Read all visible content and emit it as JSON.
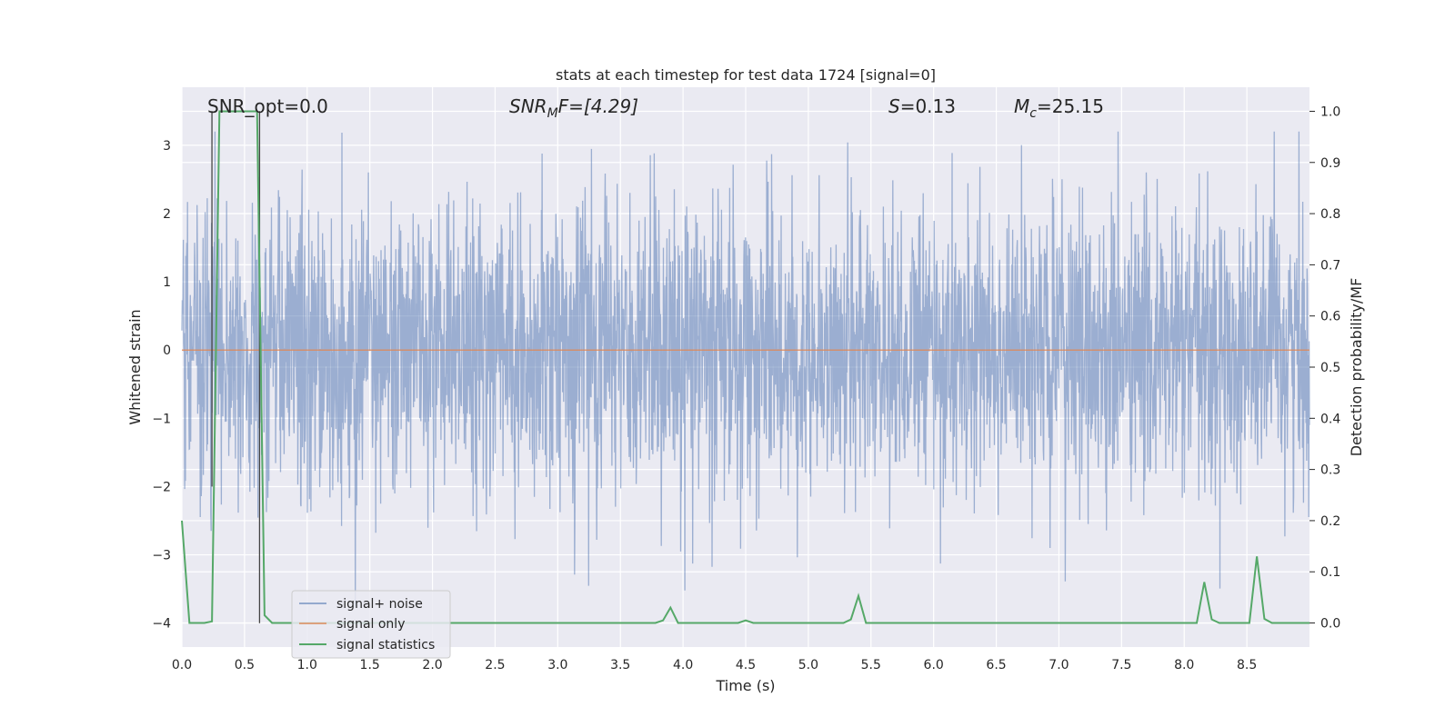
{
  "chart_data": {
    "type": "line",
    "title": "stats at each timestep for test data 1724 [signal=0]",
    "xlabel": "Time (s)",
    "ylabel_left": "Whitened strain",
    "ylabel_right": "Detection probability/MF",
    "xlim": [
      0,
      9
    ],
    "ylim_left": [
      -4.35,
      3.85
    ],
    "ylim_right": [
      -0.047,
      1.047
    ],
    "xticks": [
      "0.0",
      "0.5",
      "1.0",
      "1.5",
      "2.0",
      "2.5",
      "3.0",
      "3.5",
      "4.0",
      "4.5",
      "5.0",
      "5.5",
      "6.0",
      "6.5",
      "7.0",
      "7.5",
      "8.0",
      "8.5"
    ],
    "yticks_left": [
      "3",
      "2",
      "1",
      "0",
      "−1",
      "−2",
      "−3",
      "−4"
    ],
    "yticks_right": [
      "1.0",
      "0.9",
      "0.8",
      "0.7",
      "0.6",
      "0.5",
      "0.4",
      "0.3",
      "0.2",
      "0.1",
      "0.0"
    ],
    "grid": true,
    "legend_position": "lower-left",
    "annotations": {
      "snr_opt": "SNR_opt=0.0",
      "snr_mf_base": "SNR",
      "snr_mf_sub": "M",
      "snr_mf_rest": "F=[4.29]",
      "s_var": "S",
      "s_rest": "=0.13",
      "mc_base": "M",
      "mc_sub": "c",
      "mc_rest": "=25.15"
    },
    "series": [
      {
        "name": "signal+ noise",
        "color": "#4c72b0",
        "axis": "left",
        "description_values": "noise band roughly between -2.0 and 1.8 with spikes up to 3.2 and down to -4.0"
      },
      {
        "name": "signal only",
        "color": "#dd8452",
        "axis": "left",
        "x": [
          0,
          9
        ],
        "y": [
          0,
          0
        ]
      },
      {
        "name": "signal statistics",
        "color": "#55a868",
        "axis": "right",
        "x": [
          0,
          0.06,
          0.18,
          0.24,
          0.3,
          0.36,
          0.42,
          0.48,
          0.54,
          0.6,
          0.66,
          0.72,
          0.78,
          3.78,
          3.84,
          3.9,
          3.96,
          4.02,
          4.44,
          4.5,
          4.56,
          4.62,
          5.28,
          5.34,
          5.4,
          5.46,
          5.52,
          8.1,
          8.16,
          8.22,
          8.28,
          8.34,
          8.52,
          8.58,
          8.64,
          8.7,
          8.76,
          9.0
        ],
        "y": [
          0.2,
          0.0,
          0.0,
          0.003,
          1.0,
          1.0,
          1.0,
          1.0,
          1.0,
          1.0,
          0.015,
          0.0,
          0.0,
          0.0,
          0.005,
          0.03,
          0.0,
          0.0,
          0.0,
          0.005,
          0.0,
          0.0,
          0.0,
          0.007,
          0.053,
          0.0,
          0.0,
          0.0,
          0.08,
          0.007,
          0.0,
          0.0,
          0.0,
          0.13,
          0.008,
          0.0,
          0.0,
          0.0
        ]
      }
    ],
    "vlines": [
      {
        "x": 0.24,
        "y_from": 3.5,
        "y_to": -2.0,
        "color": "#444444"
      },
      {
        "x": 0.62,
        "y_from": 3.5,
        "y_to": -4.0,
        "color": "#444444"
      }
    ]
  }
}
